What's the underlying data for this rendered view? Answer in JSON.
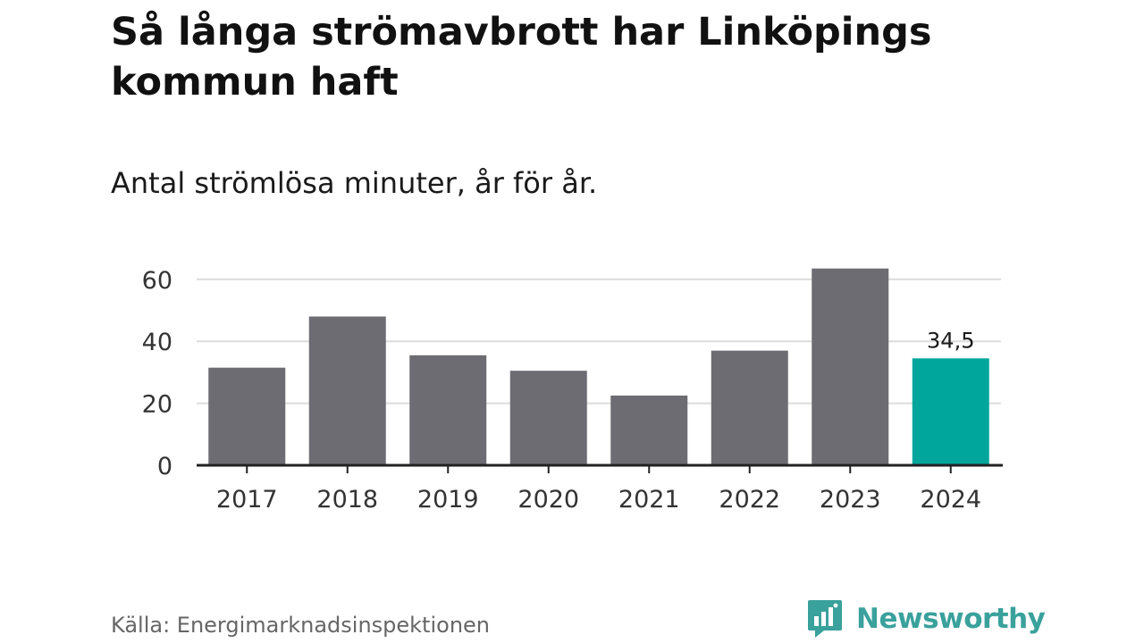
{
  "header": {
    "title": "Så långa strömavbrott har Linköpings kommun haft",
    "subtitle": "Antal strömlösa minuter, år för år."
  },
  "footer": {
    "source": "Källa: Energimarknadsinspektionen",
    "brand": "Newsworthy",
    "brand_icon": "speech-bubble-bar-chart-icon"
  },
  "colors": {
    "bar": "#6d6c72",
    "highlight": "#00a69c",
    "grid": "#dcdcdc",
    "axis": "#222222",
    "brand": "#3aa19c"
  },
  "chart_data": {
    "type": "bar",
    "categories": [
      "2017",
      "2018",
      "2019",
      "2020",
      "2021",
      "2022",
      "2023",
      "2024"
    ],
    "values": [
      31.5,
      48,
      35.5,
      30.5,
      22.5,
      37,
      63.5,
      34.5
    ],
    "highlight_index": 7,
    "data_labels": [
      {
        "index": 7,
        "text": "34,5"
      }
    ],
    "yticks": [
      0,
      20,
      40,
      60
    ],
    "ylim": [
      0,
      65
    ],
    "grid": true,
    "legend": "none"
  }
}
